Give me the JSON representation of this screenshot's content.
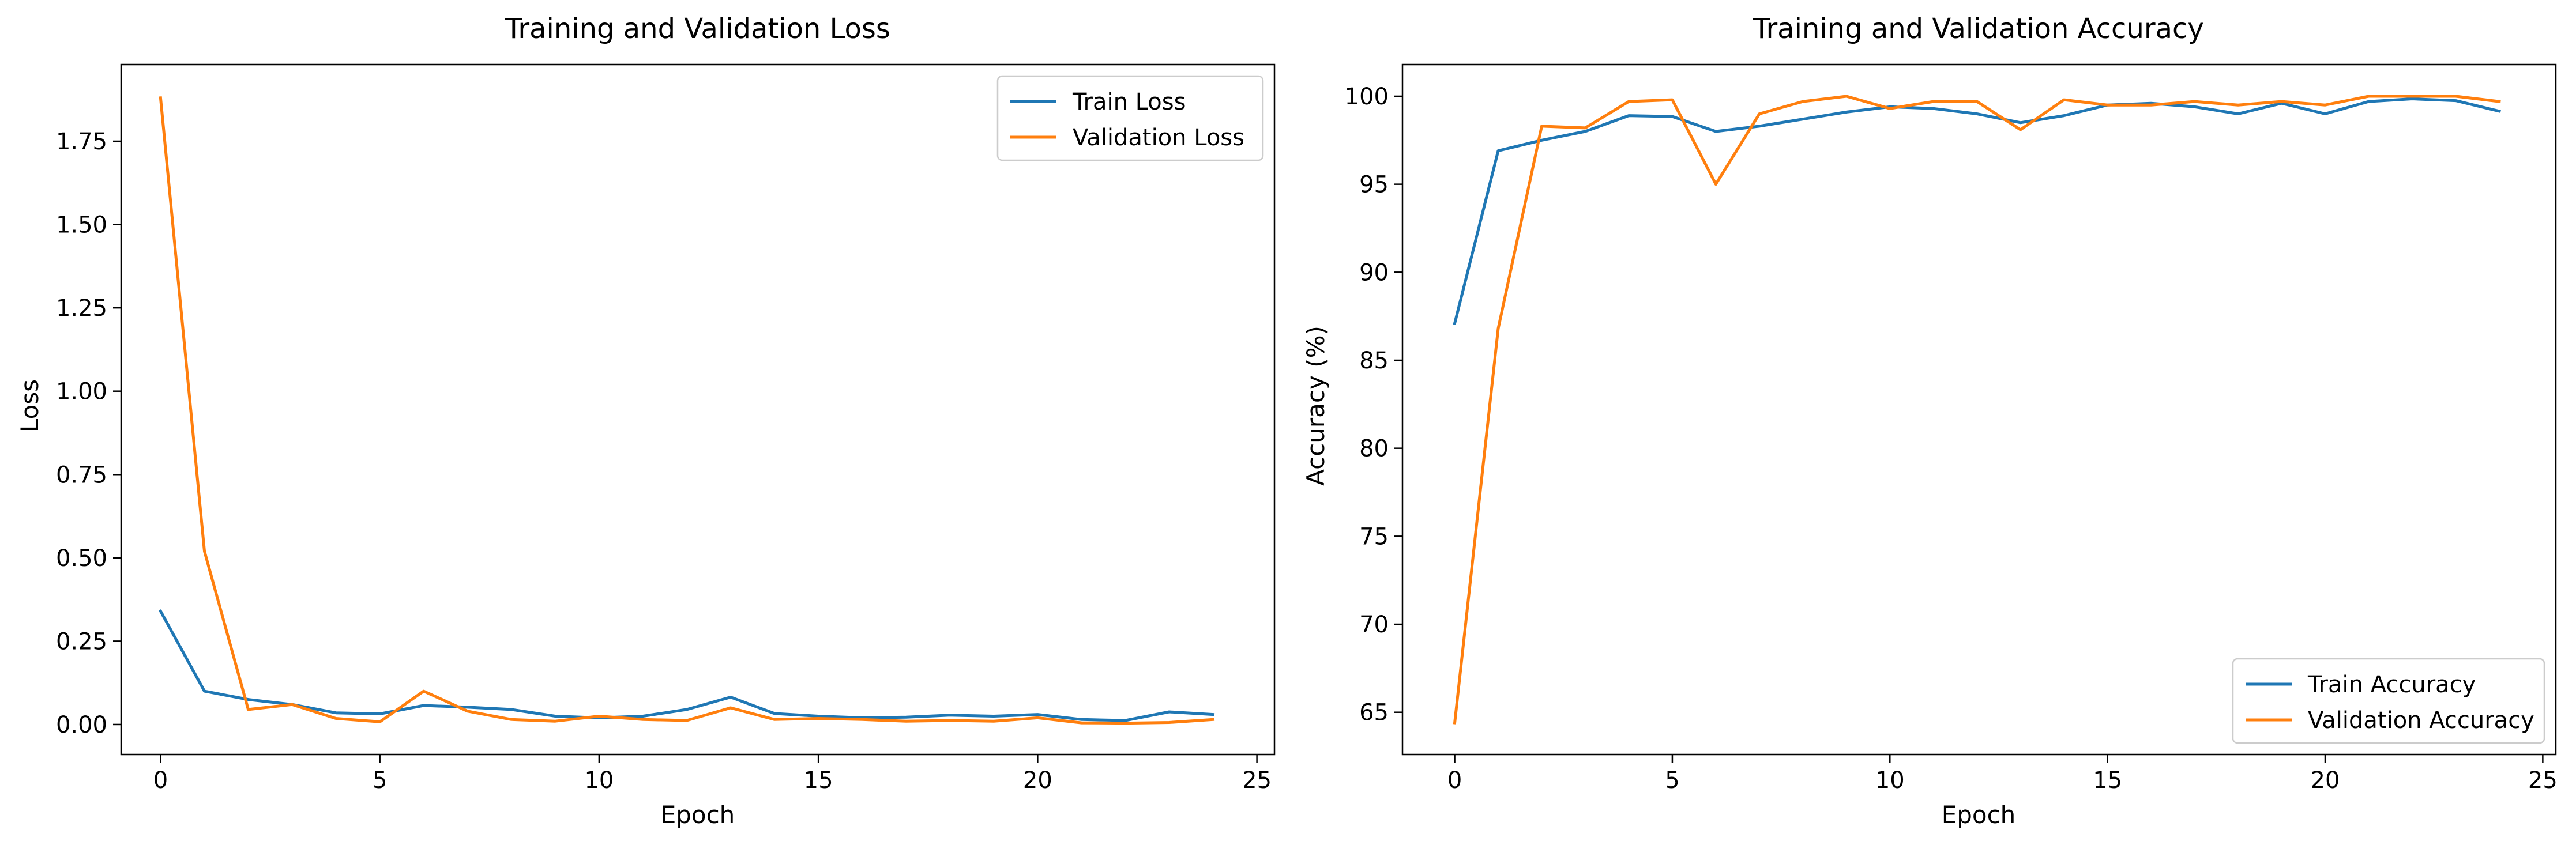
{
  "colors": {
    "train": "#1f77b4",
    "validation": "#ff7f0e"
  },
  "chart_data": [
    {
      "type": "line",
      "title": "Training and Validation Loss",
      "xlabel": "Epoch",
      "ylabel": "Loss",
      "xlim": [
        -0.9,
        25.4
      ],
      "ylim": [
        -0.09,
        1.98
      ],
      "xticks": [
        {
          "value": 0,
          "label": "0"
        },
        {
          "value": 5,
          "label": "5"
        },
        {
          "value": 10,
          "label": "10"
        },
        {
          "value": 15,
          "label": "15"
        },
        {
          "value": 20,
          "label": "20"
        },
        {
          "value": 25,
          "label": "25"
        }
      ],
      "yticks": [
        {
          "value": 0,
          "label": "0.00"
        },
        {
          "value": 0.25,
          "label": "0.25"
        },
        {
          "value": 0.5,
          "label": "0.50"
        },
        {
          "value": 0.75,
          "label": "0.75"
        },
        {
          "value": 1.0,
          "label": "1.00"
        },
        {
          "value": 1.25,
          "label": "1.25"
        },
        {
          "value": 1.5,
          "label": "1.50"
        },
        {
          "value": 1.75,
          "label": "1.75"
        }
      ],
      "legend": "top-right",
      "grid": false,
      "x": [
        0,
        1,
        2,
        3,
        4,
        5,
        6,
        7,
        8,
        9,
        10,
        11,
        12,
        13,
        14,
        15,
        16,
        17,
        18,
        19,
        20,
        21,
        22,
        23,
        24
      ],
      "series": [
        {
          "name": "Train Loss",
          "color": "#1f77b4",
          "values": [
            0.34,
            0.1,
            0.075,
            0.06,
            0.035,
            0.032,
            0.057,
            0.052,
            0.045,
            0.025,
            0.02,
            0.025,
            0.045,
            0.082,
            0.033,
            0.025,
            0.02,
            0.022,
            0.028,
            0.025,
            0.03,
            0.015,
            0.012,
            0.038,
            0.03
          ]
        },
        {
          "name": "Validation Loss",
          "color": "#ff7f0e",
          "values": [
            1.88,
            0.52,
            0.045,
            0.06,
            0.018,
            0.008,
            0.1,
            0.04,
            0.015,
            0.01,
            0.025,
            0.015,
            0.012,
            0.05,
            0.015,
            0.018,
            0.015,
            0.01,
            0.012,
            0.01,
            0.02,
            0.005,
            0.004,
            0.006,
            0.015
          ]
        }
      ]
    },
    {
      "type": "line",
      "title": "Training and Validation Accuracy",
      "xlabel": "Epoch",
      "ylabel": "Accuracy (%)",
      "xlim": [
        -1.2,
        25.3
      ],
      "ylim": [
        62.6,
        101.8
      ],
      "xticks": [
        {
          "value": 0,
          "label": "0"
        },
        {
          "value": 5,
          "label": "5"
        },
        {
          "value": 10,
          "label": "10"
        },
        {
          "value": 15,
          "label": "15"
        },
        {
          "value": 20,
          "label": "20"
        },
        {
          "value": 25,
          "label": "25"
        }
      ],
      "yticks": [
        {
          "value": 65,
          "label": "65"
        },
        {
          "value": 70,
          "label": "70"
        },
        {
          "value": 75,
          "label": "75"
        },
        {
          "value": 80,
          "label": "80"
        },
        {
          "value": 85,
          "label": "85"
        },
        {
          "value": 90,
          "label": "90"
        },
        {
          "value": 95,
          "label": "95"
        },
        {
          "value": 100,
          "label": "100"
        }
      ],
      "legend": "bottom-right",
      "grid": false,
      "x": [
        0,
        1,
        2,
        3,
        4,
        5,
        6,
        7,
        8,
        9,
        10,
        11,
        12,
        13,
        14,
        15,
        16,
        17,
        18,
        19,
        20,
        21,
        22,
        23,
        24
      ],
      "series": [
        {
          "name": "Train Accuracy",
          "color": "#1f77b4",
          "values": [
            87.1,
            96.9,
            97.5,
            98.0,
            98.9,
            98.85,
            98.0,
            98.3,
            98.7,
            99.1,
            99.4,
            99.3,
            99.0,
            98.5,
            98.9,
            99.5,
            99.6,
            99.4,
            99.0,
            99.6,
            99.0,
            99.7,
            99.85,
            99.75,
            99.15
          ]
        },
        {
          "name": "Validation Accuracy",
          "color": "#ff7f0e",
          "values": [
            64.4,
            86.8,
            98.3,
            98.2,
            99.7,
            99.8,
            95.0,
            99.0,
            99.7,
            100.0,
            99.3,
            99.7,
            99.7,
            98.1,
            99.8,
            99.5,
            99.5,
            99.7,
            99.5,
            99.7,
            99.5,
            100.0,
            100.0,
            100.0,
            99.7
          ]
        }
      ]
    }
  ]
}
